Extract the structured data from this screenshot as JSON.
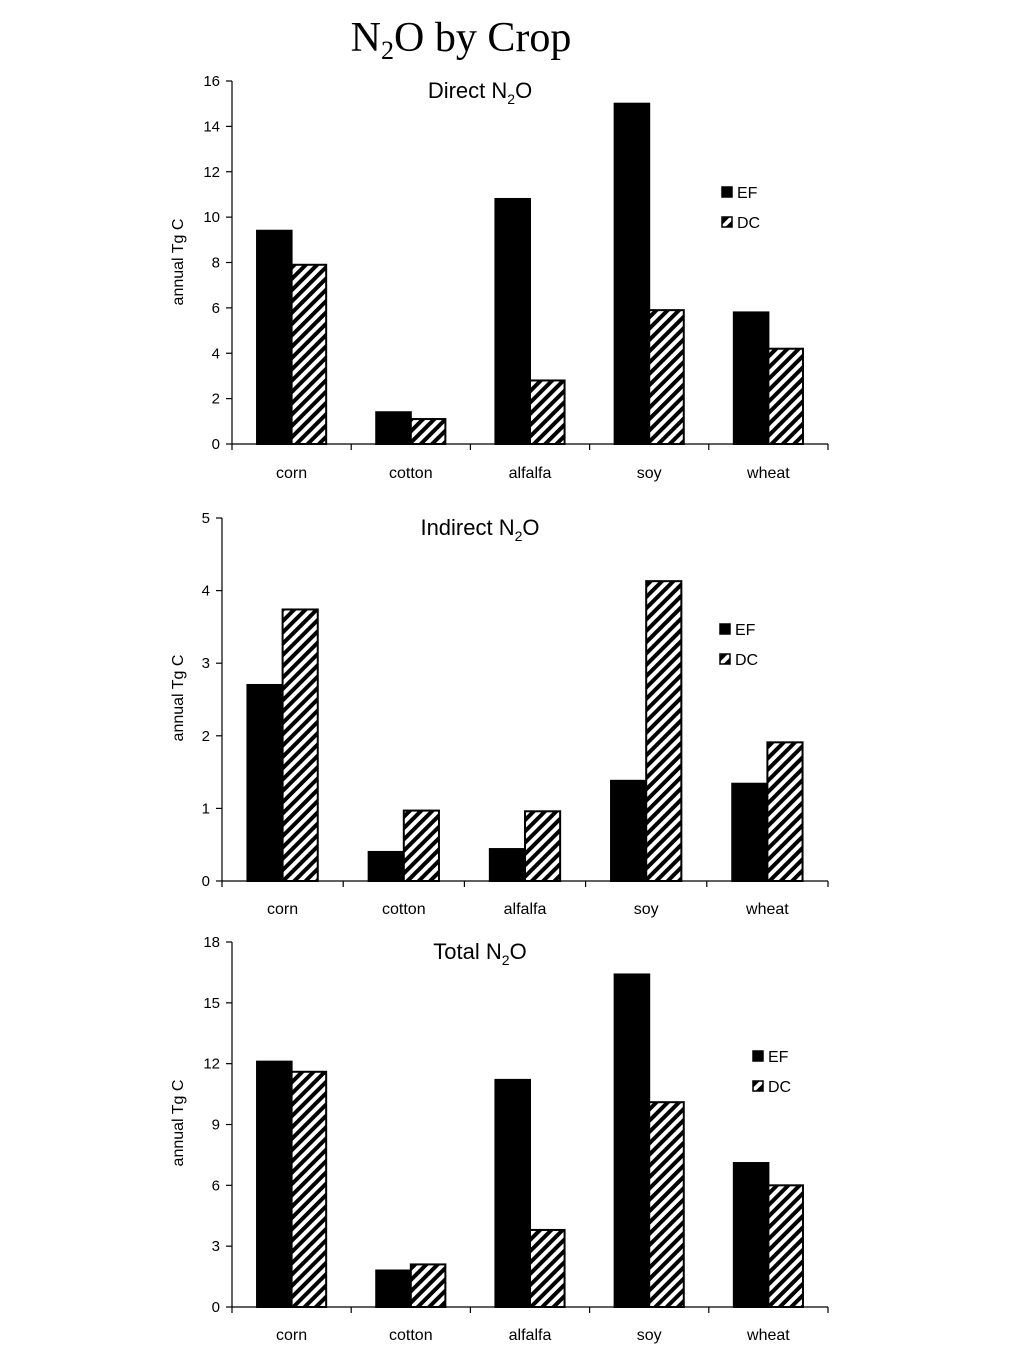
{
  "page_title": {
    "prefix": "N",
    "sub": "2",
    "suffix": "O by Crop"
  },
  "colors": {
    "EF": "#000000",
    "DC": "hatched"
  },
  "chart_data": [
    {
      "type": "bar",
      "title": {
        "prefix": "Direct N",
        "sub": "2",
        "suffix": "O"
      },
      "ylabel": "annual Tg C",
      "categories": [
        "corn",
        "cotton",
        "alfalfa",
        "soy",
        "wheat"
      ],
      "ylim": [
        0,
        16
      ],
      "yticks": [
        0,
        2,
        4,
        6,
        8,
        10,
        12,
        14,
        16
      ],
      "series": [
        {
          "name": "EF",
          "values": [
            9.4,
            1.4,
            10.8,
            15.0,
            5.8
          ]
        },
        {
          "name": "DC",
          "values": [
            7.9,
            1.1,
            2.8,
            5.9,
            4.2
          ]
        }
      ],
      "legend": "right"
    },
    {
      "type": "bar",
      "title": {
        "prefix": "Indirect N",
        "sub": "2",
        "suffix": "O"
      },
      "ylabel": "annual Tg C",
      "categories": [
        "corn",
        "cotton",
        "alfalfa",
        "soy",
        "wheat"
      ],
      "ylim": [
        0,
        5
      ],
      "yticks": [
        0,
        1,
        2,
        3,
        4,
        5
      ],
      "series": [
        {
          "name": "EF",
          "values": [
            2.7,
            0.4,
            0.44,
            1.38,
            1.34
          ]
        },
        {
          "name": "DC",
          "values": [
            3.74,
            0.97,
            0.96,
            4.13,
            1.91
          ]
        }
      ],
      "legend": "right"
    },
    {
      "type": "bar",
      "title": {
        "prefix": "Total N",
        "sub": "2",
        "suffix": "O"
      },
      "ylabel": "annual Tg C",
      "categories": [
        "corn",
        "cotton",
        "alfalfa",
        "soy",
        "wheat"
      ],
      "ylim": [
        0,
        18
      ],
      "yticks": [
        0,
        3,
        6,
        9,
        12,
        15,
        18
      ],
      "series": [
        {
          "name": "EF",
          "values": [
            12.1,
            1.8,
            11.2,
            16.4,
            7.1
          ]
        },
        {
          "name": "DC",
          "values": [
            11.6,
            2.1,
            3.8,
            10.1,
            6.0
          ]
        }
      ],
      "legend": "right"
    }
  ]
}
